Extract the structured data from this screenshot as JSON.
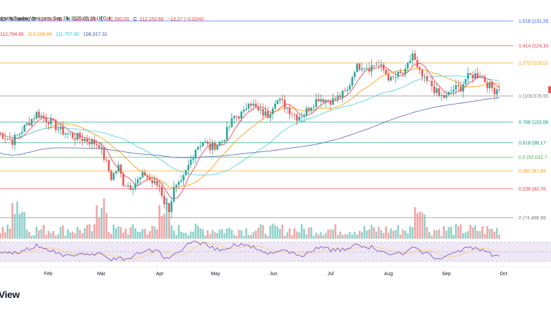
{
  "header": {
    "title": "d with TradingView.com, Sep 29, 2025 05:28 UTC-4",
    "symbol_line": "1D · Binance",
    "ohlc": [
      {
        "label": "O",
        "value": "112,163.96"
      },
      {
        "label": "H",
        "value": "112,421.99"
      },
      {
        "label": "L",
        "value": "111,560.65"
      },
      {
        "label": "C",
        "value": "112,150.68"
      },
      {
        "label": "",
        "value": "−13.27 (−0.01%)"
      }
    ],
    "ma_values": [
      {
        "value": "112,764.86",
        "color": "#f23645"
      },
      {
        "value": "113,249.84",
        "color": "#ff9800"
      },
      {
        "value": "111,757.30",
        "color": "#4dd0e1"
      },
      {
        "value": "106,317.31",
        "color": "#3f51b5"
      }
    ]
  },
  "brand": "View",
  "colors": {
    "up": "#26a69a",
    "down": "#ef5350",
    "ma_fast": "#f23645",
    "ma_mid": "#ff9800",
    "ma_slow": "#4dd0e1",
    "ma_long": "#5c6bc0",
    "rsi": "#7e57c2",
    "rsi_ma": "#ffcc80",
    "rsi_band": "#ede7f6"
  },
  "chart_data": {
    "type": "candlestick",
    "x_labels": [
      "Feb",
      "Mar",
      "Apr",
      "May",
      "Jun",
      "Jul",
      "Aug",
      "Sep",
      "Oct"
    ],
    "fib_levels": [
      {
        "ratio": "1.618",
        "label": "1.618 (131,26",
        "price": 131260,
        "color": "#2962ff"
      },
      {
        "ratio": "1.414",
        "label": "1.414 (124,10",
        "price": 124100,
        "color": "#f23645"
      },
      {
        "ratio": "1.272",
        "label": "1.272 (119,12",
        "price": 119120,
        "color": "#ff9800"
      },
      {
        "ratio": "1",
        "label": "1 (109,576.55",
        "price": 109576.55,
        "color": "#787b86"
      },
      {
        "ratio": "0.786",
        "label": "0.786 (102,06",
        "price": 102060,
        "color": "#089981"
      },
      {
        "ratio": "0.618",
        "label": "0.618 (96,17",
        "price": 96170,
        "color": "#089981"
      },
      {
        "ratio": "0.5",
        "label": "0.5 (92,032.7",
        "price": 92032.7,
        "color": "#4caf50"
      },
      {
        "ratio": "0.382",
        "label": "0.382 (87,89",
        "price": 87890,
        "color": "#ff9800"
      },
      {
        "ratio": "0.236",
        "label": "0.236 (82,76",
        "price": 82760,
        "color": "#f23645"
      },
      {
        "ratio": "0",
        "label": "0 (74,488.98",
        "price": 74488.98,
        "color": "#787b86"
      }
    ],
    "price_path": [
      [
        0,
        99000
      ],
      [
        6,
        96500
      ],
      [
        11,
        100500
      ],
      [
        16,
        104500
      ],
      [
        21,
        102500
      ],
      [
        26,
        99500
      ],
      [
        31,
        98000
      ],
      [
        36,
        97000
      ],
      [
        42,
        95500
      ],
      [
        45,
        90000
      ],
      [
        47,
        86000
      ],
      [
        50,
        89000
      ],
      [
        52,
        84500
      ],
      [
        55,
        83500
      ],
      [
        58,
        85000
      ],
      [
        61,
        87000
      ],
      [
        64,
        84500
      ],
      [
        67,
        83500
      ],
      [
        69,
        79000
      ],
      [
        71,
        77000
      ],
      [
        73,
        82500
      ],
      [
        76,
        84000
      ],
      [
        78,
        87500
      ],
      [
        82,
        94500
      ],
      [
        85,
        96500
      ],
      [
        88,
        94500
      ],
      [
        93,
        96500
      ],
      [
        98,
        103500
      ],
      [
        102,
        104500
      ],
      [
        104,
        108500
      ],
      [
        108,
        105000
      ],
      [
        112,
        104000
      ],
      [
        115,
        108500
      ],
      [
        118,
        107500
      ],
      [
        121,
        105500
      ],
      [
        124,
        103500
      ],
      [
        127,
        104500
      ],
      [
        130,
        107000
      ],
      [
        133,
        109000
      ],
      [
        136,
        108500
      ],
      [
        139,
        108200
      ],
      [
        142,
        109500
      ],
      [
        145,
        111000
      ],
      [
        148,
        117500
      ],
      [
        151,
        118500
      ],
      [
        154,
        117800
      ],
      [
        157,
        118700
      ],
      [
        160,
        117000
      ],
      [
        163,
        114000
      ],
      [
        166,
        115500
      ],
      [
        169,
        116200
      ],
      [
        172,
        121800
      ],
      [
        174,
        117000
      ],
      [
        177,
        114000
      ],
      [
        180,
        112500
      ],
      [
        183,
        109500
      ],
      [
        186,
        109200
      ],
      [
        189,
        111500
      ],
      [
        192,
        112000
      ],
      [
        194,
        114500
      ],
      [
        197,
        115500
      ],
      [
        200,
        115800
      ],
      [
        203,
        113000
      ],
      [
        206,
        111200
      ],
      [
        208,
        112150
      ]
    ],
    "rsi_levels": [
      70,
      50,
      30
    ]
  }
}
